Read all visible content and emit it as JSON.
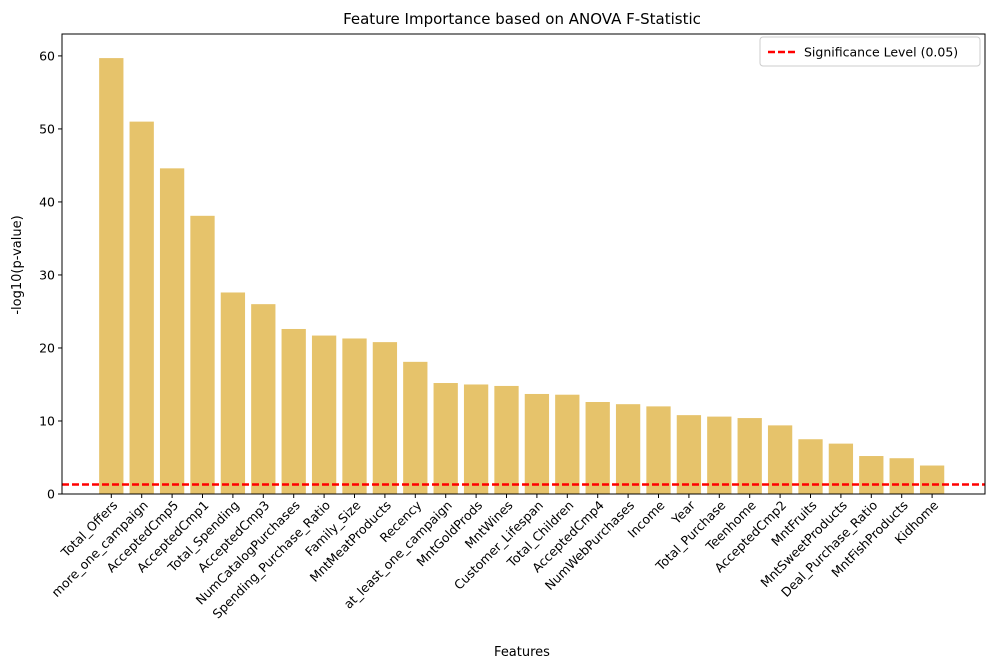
{
  "chart_data": {
    "type": "bar",
    "title": "Feature Importance based on ANOVA F-Statistic",
    "xlabel": "Features",
    "ylabel": "-log10(p-value)",
    "ylim": [
      0,
      63
    ],
    "yticks": [
      0,
      10,
      20,
      30,
      40,
      50,
      60
    ],
    "grid": false,
    "legend_position": "top-right",
    "bar_color": "#e6c36b",
    "categories": [
      "Total_Offers",
      "more_one_campaign",
      "AcceptedCmp5",
      "AcceptedCmp1",
      "Total_Spending",
      "AcceptedCmp3",
      "NumCatalogPurchases",
      "Spending_Purchase_Ratio",
      "Family_Size",
      "MntMeatProducts",
      "Recency",
      "at_least_one_campaign",
      "MntGoldProds",
      "MntWines",
      "Customer_Lifespan",
      "Total_Children",
      "AcceptedCmp4",
      "NumWebPurchases",
      "Income",
      "Year",
      "Total_Purchase",
      "Teenhome",
      "AcceptedCmp2",
      "MntFruits",
      "MntSweetProducts",
      "Deal_Purchase_Ratio",
      "MntFishProducts",
      "Kidhome"
    ],
    "values": [
      59.7,
      51.0,
      44.6,
      38.1,
      27.6,
      26.0,
      22.6,
      21.7,
      21.3,
      20.8,
      18.1,
      15.2,
      15.0,
      14.8,
      13.7,
      13.6,
      12.6,
      12.3,
      12.0,
      10.8,
      10.6,
      10.4,
      9.4,
      7.5,
      6.9,
      5.2,
      4.9,
      3.9
    ],
    "reference_line": {
      "label": "Significance Level (0.05)",
      "value": 1.301,
      "color": "#ff0000"
    }
  }
}
